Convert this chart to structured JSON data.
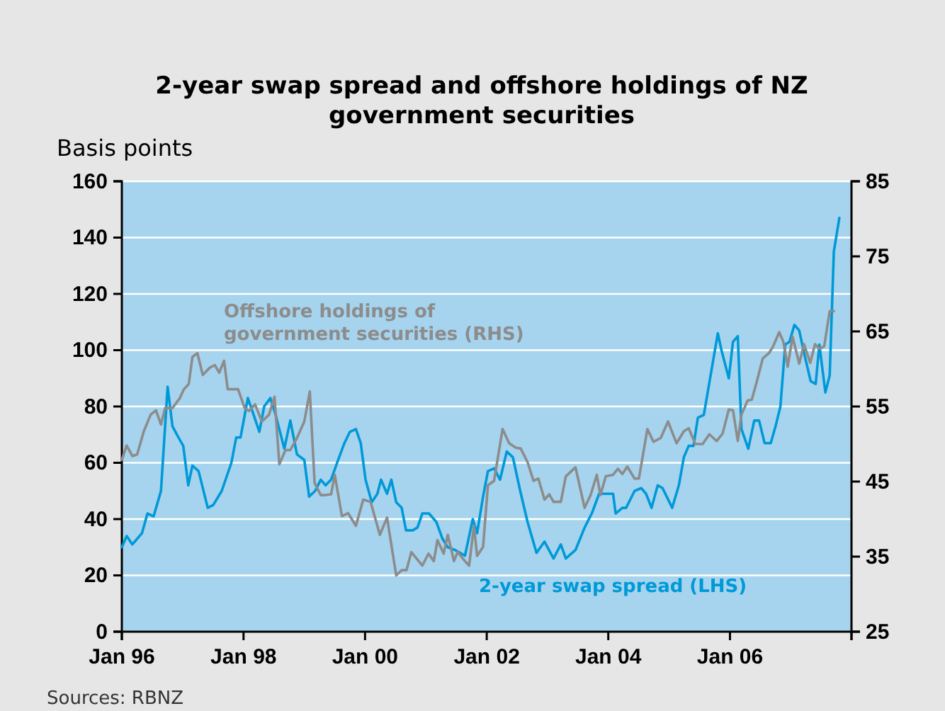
{
  "chart_data": {
    "type": "line",
    "title": "2-year swap spread and offshore holdings of NZ government securities",
    "ylabel": "Basis points",
    "annotations": [
      "Sources: RBNZ"
    ],
    "xlim": [
      "1996-01",
      "2008-01"
    ],
    "xticks": [
      {
        "value": "1996-01",
        "label": "Jan 96"
      },
      {
        "value": "1998-01",
        "label": "Jan 98"
      },
      {
        "value": "2000-01",
        "label": "Jan 00"
      },
      {
        "value": "2002-01",
        "label": "Jan 02"
      },
      {
        "value": "2004-01",
        "label": "Jan 04"
      },
      {
        "value": "2006-01",
        "label": "Jan 06"
      },
      {
        "value": "2008-01",
        "label": null
      }
    ],
    "ylim": [
      0,
      160
    ],
    "yticks": [
      0,
      20,
      40,
      60,
      80,
      100,
      120,
      140,
      160
    ],
    "y2lim": [
      25,
      85
    ],
    "y2ticks": [
      25,
      35,
      45,
      55,
      65,
      75,
      85
    ],
    "grid": "y",
    "legend": false,
    "series": [
      {
        "name": "2-year swap spread (LHS)",
        "color": "#0099d8",
        "x": [
          "1996-01-01",
          "1996-01-30",
          "1996-03-04",
          "1996-05-01",
          "1996-06-03",
          "1996-07-10",
          "1996-08-23",
          "1996-10-02",
          "1996-10-31",
          "1996-12-06",
          "1997-01-04",
          "1997-02-03",
          "1997-02-28",
          "1997-04-06",
          "1997-05-31",
          "1997-07-03",
          "1997-08-23",
          "1997-10-20",
          "1997-11-18",
          "1997-12-14",
          "1998-01-27",
          "1998-02-25",
          "1998-04-06",
          "1998-05-05",
          "1998-06-11",
          "1998-07-13",
          "1998-09-03",
          "1998-10-09",
          "1998-11-18",
          "1999-01-01",
          "1999-01-30",
          "1999-03-07",
          "1999-04-10",
          "1999-05-09",
          "1999-06-11",
          "1999-07-17",
          "1999-08-30",
          "1999-10-02",
          "1999-11-07",
          "1999-12-06",
          "2000-01-04",
          "2000-02-10",
          "2000-03-15",
          "2000-04-06",
          "2000-05-12",
          "2000-06-07",
          "2000-07-06",
          "2000-08-08",
          "2000-09-03",
          "2000-10-13",
          "2000-11-11",
          "2000-12-10",
          "2001-01-19",
          "2001-03-04",
          "2001-04-10",
          "2001-05-12",
          "2001-06-25",
          "2001-08-23",
          "2001-09-03",
          "2001-10-09",
          "2001-11-04",
          "2001-12-10",
          "2002-01-08",
          "2002-02-14",
          "2002-03-22",
          "2002-05-01",
          "2002-06-07",
          "2002-07-21",
          "2002-09-03",
          "2002-10-27",
          "2002-12-14",
          "2003-02-06",
          "2003-03-22",
          "2003-04-21",
          "2003-06-18",
          "2003-08-12",
          "2003-09-24",
          "2003-11-07",
          "2003-12-17",
          "2004-01-30",
          "2004-02-14",
          "2004-03-26",
          "2004-04-17",
          "2004-06-07",
          "2004-07-17",
          "2004-08-15",
          "2004-09-17",
          "2004-10-24",
          "2004-11-22",
          "2005-01-19",
          "2005-02-28",
          "2005-03-30",
          "2005-04-28",
          "2005-05-27",
          "2005-06-22",
          "2005-07-28",
          "2005-10-20",
          "2005-11-11",
          "2005-12-25",
          "2006-01-19",
          "2006-02-17",
          "2006-03-11",
          "2006-04-21",
          "2006-05-27",
          "2006-06-25",
          "2006-07-28",
          "2006-09-03",
          "2006-10-02",
          "2006-10-31",
          "2006-11-29",
          "2006-12-25",
          "2007-01-23",
          "2007-02-21",
          "2007-03-22",
          "2007-05-01",
          "2007-05-31",
          "2007-06-22",
          "2007-07-28",
          "2007-08-23",
          "2007-09-17",
          "2007-10-20"
        ],
        "values": [
          30,
          34,
          31,
          35,
          42,
          41,
          50,
          87,
          73,
          69,
          66,
          52,
          59,
          57,
          44,
          45,
          50,
          60,
          69,
          69,
          83,
          78,
          71,
          80,
          83,
          77,
          65,
          75,
          63,
          61,
          48,
          50,
          54,
          52,
          54,
          60,
          67,
          71,
          72,
          67,
          54,
          46,
          49,
          54,
          49,
          54,
          46,
          44,
          36,
          36,
          37,
          42,
          42,
          39,
          33,
          30,
          29,
          27,
          30,
          40,
          35,
          48,
          57,
          58,
          54,
          64,
          62,
          50,
          39,
          28,
          32,
          26,
          31,
          26,
          29,
          37,
          42,
          49,
          49,
          49,
          42,
          44,
          44,
          50,
          51,
          49,
          44,
          52,
          51,
          44,
          52,
          62,
          66,
          66,
          76,
          77,
          106,
          100,
          90,
          103,
          105,
          72,
          65,
          75,
          75,
          67,
          67,
          73,
          80,
          102,
          103,
          109,
          107,
          99,
          89,
          88,
          102,
          85,
          91,
          135,
          147
        ]
      },
      {
        "name": "Offshore holdings of government securities (RHS)",
        "color": "#8c8c8c",
        "axis": "y2",
        "x": [
          "1996-01-01",
          "1996-01-30",
          "1996-03-04",
          "1996-04-02",
          "1996-05-12",
          "1996-06-22",
          "1996-07-24",
          "1996-08-23",
          "1996-09-17",
          "1996-10-31",
          "1996-12-14",
          "1997-01-08",
          "1997-02-06",
          "1997-02-28",
          "1997-03-30",
          "1997-05-01",
          "1997-06-14",
          "1997-07-13",
          "1997-08-08",
          "1997-09-06",
          "1997-09-28",
          "1997-11-04",
          "1997-11-29",
          "1998-01-08",
          "1998-02-03",
          "1998-03-11",
          "1998-04-21",
          "1998-06-03",
          "1998-07-06",
          "1998-08-04",
          "1998-09-10",
          "1998-10-09",
          "1998-11-18",
          "1999-01-01",
          "1999-02-03",
          "1999-03-04",
          "1999-04-10",
          "1999-05-09",
          "1999-06-11",
          "1999-07-03",
          "1999-08-15",
          "1999-09-21",
          "1999-11-07",
          "1999-12-21",
          "2000-02-03",
          "2000-03-30",
          "2000-05-12",
          "2000-07-06",
          "2000-08-08",
          "2000-09-06",
          "2000-10-05",
          "2000-12-10",
          "2001-01-16",
          "2001-02-17",
          "2001-03-11",
          "2001-04-17",
          "2001-05-12",
          "2001-06-18",
          "2001-07-10",
          "2001-08-23",
          "2001-09-17",
          "2001-10-16",
          "2001-11-04",
          "2001-12-10",
          "2002-01-08",
          "2002-02-14",
          "2002-04-06",
          "2002-05-16",
          "2002-06-25",
          "2002-07-24",
          "2002-09-03",
          "2002-10-09",
          "2002-11-07",
          "2002-12-14",
          "2003-01-12",
          "2003-02-06",
          "2003-03-22",
          "2003-04-21",
          "2003-06-18",
          "2003-08-12",
          "2003-09-17",
          "2003-10-24",
          "2003-11-15",
          "2003-12-17",
          "2004-01-30",
          "2004-02-28",
          "2004-03-26",
          "2004-04-24",
          "2004-06-07",
          "2004-07-03",
          "2004-08-23",
          "2004-09-28",
          "2004-11-11",
          "2004-12-25",
          "2005-02-14",
          "2005-03-30",
          "2005-04-28",
          "2005-06-07",
          "2005-07-21",
          "2005-08-30",
          "2005-10-13",
          "2005-11-18",
          "2005-12-25",
          "2006-01-19",
          "2006-02-17",
          "2006-03-11",
          "2006-04-17",
          "2006-05-12",
          "2006-06-11",
          "2006-07-17",
          "2006-08-23",
          "2006-09-17",
          "2006-10-24",
          "2006-11-18",
          "2006-12-14",
          "2007-01-12",
          "2007-02-21",
          "2007-03-22",
          "2007-04-28",
          "2007-05-27",
          "2007-06-22",
          "2007-07-21",
          "2007-08-23",
          "2007-09-17"
        ],
        "values": [
          47.9,
          49.8,
          48.4,
          48.6,
          51.7,
          53.9,
          54.5,
          52.6,
          54.8,
          54.8,
          56.1,
          57.3,
          58.0,
          61.6,
          62.1,
          59.2,
          60.2,
          60.5,
          59.5,
          61.1,
          57.3,
          57.3,
          57.3,
          54.8,
          54.4,
          55.3,
          53.0,
          53.9,
          56.3,
          47.3,
          49.2,
          49.2,
          50.8,
          53.0,
          57.0,
          44.8,
          43.2,
          43.2,
          43.3,
          45.9,
          40.4,
          40.8,
          39.1,
          42.6,
          42.3,
          37.9,
          40.2,
          32.5,
          33.2,
          33.2,
          35.6,
          33.8,
          35.4,
          34.4,
          37.2,
          35.4,
          37.9,
          34.4,
          35.6,
          34.4,
          33.8,
          39.1,
          35.1,
          36.3,
          44.5,
          45.1,
          52.0,
          50.1,
          49.5,
          49.4,
          47.6,
          45.1,
          45.4,
          42.6,
          43.3,
          42.3,
          42.3,
          45.7,
          46.9,
          41.5,
          43.2,
          45.9,
          43.2,
          45.7,
          45.9,
          46.7,
          46.0,
          47.0,
          45.4,
          45.4,
          52.0,
          50.3,
          50.8,
          53.0,
          50.1,
          51.7,
          52.1,
          50.0,
          50.0,
          51.3,
          50.4,
          51.4,
          54.6,
          54.5,
          50.4,
          53.9,
          55.8,
          55.9,
          58.3,
          61.4,
          62.1,
          63.0,
          64.9,
          63.6,
          60.3,
          64.3,
          60.7,
          63.3,
          60.8,
          63.3,
          62.7,
          63.0,
          67.7,
          67.7
        ]
      }
    ]
  }
}
